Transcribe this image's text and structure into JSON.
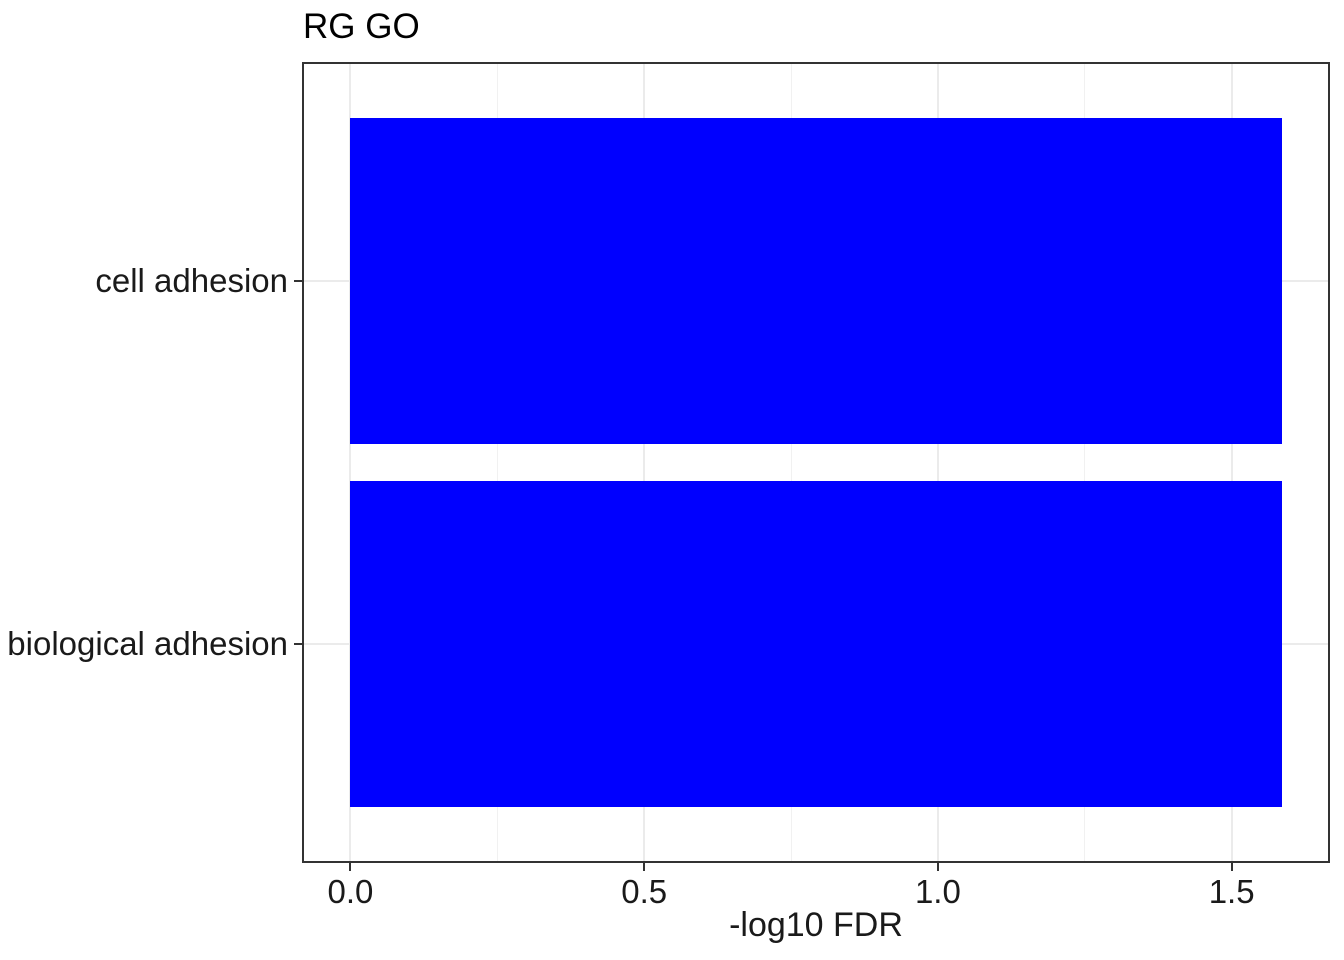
{
  "chart_data": {
    "type": "bar",
    "orientation": "horizontal",
    "title": "RG GO",
    "xlabel": "-log10 FDR",
    "ylabel": "",
    "categories": [
      "cell adhesion",
      "biological adhesion"
    ],
    "values": [
      1.585,
      1.585
    ],
    "xlim": [
      -0.079,
      1.664
    ],
    "x_major_ticks": [
      0.0,
      0.5,
      1.0,
      1.5
    ],
    "x_tick_labels": [
      "0.0",
      "0.5",
      "1.0",
      "1.5"
    ],
    "x_minor_ticks": [
      0.25,
      0.75,
      1.25
    ],
    "bar_color": "#0000ff",
    "panel_border_color": "#333333",
    "grid_major_color": "#ebebeb",
    "grid_minor_color": "#f1f1f1",
    "tick_color": "#333333",
    "grid": true,
    "legend_position": "none",
    "bar_width_fraction": 0.9
  }
}
